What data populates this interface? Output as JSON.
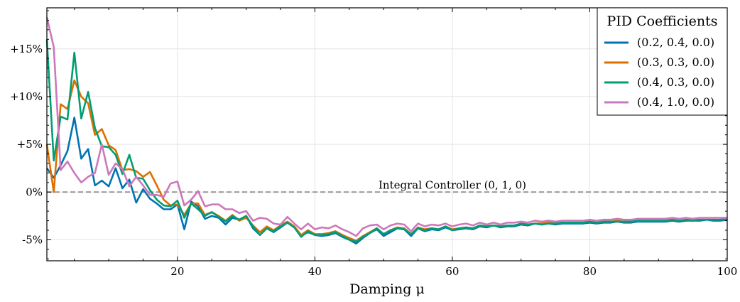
{
  "chart_data": {
    "type": "line",
    "title": "",
    "xlabel": "Damping μ",
    "ylabel": "",
    "xlim": [
      1,
      100
    ],
    "ylim": [
      -7.2,
      19.3
    ],
    "x_ticks": [
      20,
      40,
      60,
      80,
      100
    ],
    "y_ticks": [
      -5,
      0,
      5,
      10,
      15
    ],
    "y_tick_labels": [
      "-5%",
      "0%",
      "+5%",
      "+10%",
      "+15%"
    ],
    "grid": true,
    "legend": {
      "title": "PID Coefficients",
      "placement": "top-right"
    },
    "reference_line": {
      "y": 0,
      "label": "Integral Controller (0, 1, 0)",
      "style": "dashed",
      "color": "#888888"
    },
    "x": [
      1,
      2,
      3,
      4,
      5,
      6,
      7,
      8,
      9,
      10,
      11,
      12,
      13,
      14,
      15,
      16,
      17,
      18,
      19,
      20,
      21,
      22,
      23,
      24,
      25,
      26,
      27,
      28,
      29,
      30,
      31,
      32,
      33,
      34,
      35,
      36,
      37,
      38,
      39,
      40,
      41,
      42,
      43,
      44,
      45,
      46,
      47,
      48,
      49,
      50,
      51,
      52,
      53,
      54,
      55,
      56,
      57,
      58,
      59,
      60,
      61,
      62,
      63,
      64,
      65,
      66,
      67,
      68,
      69,
      70,
      71,
      72,
      73,
      74,
      75,
      76,
      77,
      78,
      79,
      80,
      81,
      82,
      83,
      84,
      85,
      86,
      87,
      88,
      89,
      90,
      91,
      92,
      93,
      94,
      95,
      96,
      97,
      98,
      99,
      100
    ],
    "series": [
      {
        "name": "(0.2, 0.4, 0.0)",
        "color": "#0173b2",
        "values": [
          2.5,
          1.5,
          2.8,
          4.3,
          7.8,
          3.5,
          4.5,
          0.7,
          1.2,
          0.6,
          2.5,
          0.4,
          1.3,
          -1.1,
          0.3,
          -0.7,
          -1.2,
          -1.8,
          -1.8,
          -1.3,
          -3.9,
          -1.0,
          -1.5,
          -2.8,
          -2.5,
          -2.7,
          -3.4,
          -2.7,
          -2.9,
          -2.5,
          -3.8,
          -4.5,
          -3.8,
          -4.2,
          -3.7,
          -3.2,
          -3.7,
          -4.6,
          -4.2,
          -4.5,
          -4.6,
          -4.5,
          -4.3,
          -4.7,
          -5.0,
          -5.4,
          -4.8,
          -4.3,
          -3.9,
          -4.6,
          -4.2,
          -3.8,
          -3.9,
          -4.6,
          -3.8,
          -4.1,
          -3.9,
          -4.0,
          -3.7,
          -4.0,
          -3.9,
          -3.8,
          -3.9,
          -3.6,
          -3.7,
          -3.5,
          -3.7,
          -3.6,
          -3.6,
          -3.4,
          -3.5,
          -3.3,
          -3.4,
          -3.3,
          -3.4,
          -3.3,
          -3.3,
          -3.3,
          -3.3,
          -3.2,
          -3.3,
          -3.2,
          -3.2,
          -3.1,
          -3.2,
          -3.2,
          -3.1,
          -3.1,
          -3.1,
          -3.1,
          -3.1,
          -3.0,
          -3.1,
          -3.0,
          -3.0,
          -3.0,
          -2.9,
          -3.0,
          -3.0,
          -2.9
        ]
      },
      {
        "name": "(0.3, 0.3, 0.0)",
        "color": "#de6f00",
        "values": [
          5.0,
          0.0,
          9.2,
          8.7,
          11.7,
          10.0,
          9.3,
          6.0,
          6.6,
          4.9,
          4.4,
          2.3,
          2.4,
          2.2,
          1.6,
          2.1,
          0.7,
          -0.8,
          -1.4,
          -1.3,
          -2.4,
          -1.2,
          -1.2,
          -2.4,
          -2.1,
          -2.5,
          -3.0,
          -2.4,
          -3.0,
          -2.7,
          -3.5,
          -4.2,
          -3.6,
          -4.0,
          -3.5,
          -3.1,
          -3.6,
          -4.5,
          -4.0,
          -4.4,
          -4.4,
          -4.3,
          -4.1,
          -4.5,
          -4.8,
          -5.1,
          -4.6,
          -4.2,
          -3.8,
          -4.4,
          -4.0,
          -3.7,
          -3.8,
          -4.4,
          -3.7,
          -3.9,
          -3.8,
          -3.9,
          -3.6,
          -3.9,
          -3.8,
          -3.7,
          -3.8,
          -3.5,
          -3.6,
          -3.5,
          -3.6,
          -3.5,
          -3.5,
          -3.3,
          -3.4,
          -3.3,
          -3.3,
          -3.2,
          -3.3,
          -3.2,
          -3.2,
          -3.2,
          -3.2,
          -3.1,
          -3.2,
          -3.1,
          -3.1,
          -3.0,
          -3.1,
          -3.1,
          -3.0,
          -3.0,
          -3.0,
          -3.0,
          -3.0,
          -2.9,
          -3.0,
          -2.9,
          -2.9,
          -2.9,
          -2.9,
          -2.9,
          -2.9,
          -2.8
        ]
      },
      {
        "name": "(0.4, 0.3, 0.0)",
        "color": "#029e73",
        "values": [
          16.0,
          3.3,
          7.9,
          7.6,
          14.6,
          7.7,
          10.5,
          6.7,
          4.8,
          4.7,
          3.9,
          1.9,
          3.9,
          1.5,
          1.4,
          0.2,
          -0.8,
          -1.4,
          -1.5,
          -0.9,
          -2.7,
          -1.2,
          -1.8,
          -2.5,
          -2.1,
          -2.6,
          -3.1,
          -2.5,
          -2.9,
          -2.5,
          -3.6,
          -4.5,
          -3.8,
          -4.1,
          -3.6,
          -3.2,
          -3.7,
          -4.7,
          -4.1,
          -4.5,
          -4.5,
          -4.4,
          -4.2,
          -4.6,
          -5.0,
          -5.2,
          -4.7,
          -4.3,
          -3.8,
          -4.4,
          -4.0,
          -3.8,
          -3.9,
          -4.4,
          -3.8,
          -4.0,
          -3.8,
          -3.9,
          -3.6,
          -4.0,
          -3.8,
          -3.7,
          -3.8,
          -3.5,
          -3.6,
          -3.5,
          -3.6,
          -3.5,
          -3.5,
          -3.3,
          -3.4,
          -3.3,
          -3.4,
          -3.3,
          -3.3,
          -3.2,
          -3.2,
          -3.2,
          -3.2,
          -3.1,
          -3.2,
          -3.1,
          -3.1,
          -3.1,
          -3.1,
          -3.1,
          -3.0,
          -3.0,
          -3.0,
          -3.0,
          -3.0,
          -2.9,
          -3.0,
          -2.9,
          -3.0,
          -2.9,
          -2.9,
          -2.9,
          -2.9,
          -2.8
        ]
      },
      {
        "name": "(0.4, 1.0, 0.0)",
        "color": "#cc78bc",
        "values": [
          18.3,
          15.2,
          2.3,
          3.2,
          2.0,
          1.0,
          1.6,
          2.0,
          5.0,
          1.8,
          3.0,
          2.4,
          0.6,
          1.6,
          0.7,
          -0.3,
          -0.3,
          -0.5,
          0.9,
          1.1,
          -1.4,
          -0.8,
          0.1,
          -1.5,
          -1.3,
          -1.3,
          -1.8,
          -1.8,
          -2.2,
          -2.0,
          -3.0,
          -2.7,
          -2.8,
          -3.3,
          -3.4,
          -2.6,
          -3.3,
          -3.9,
          -3.3,
          -3.9,
          -3.7,
          -3.8,
          -3.5,
          -3.9,
          -4.2,
          -4.6,
          -3.8,
          -3.5,
          -3.4,
          -3.9,
          -3.5,
          -3.3,
          -3.4,
          -4.1,
          -3.3,
          -3.6,
          -3.4,
          -3.5,
          -3.3,
          -3.6,
          -3.4,
          -3.3,
          -3.5,
          -3.2,
          -3.4,
          -3.2,
          -3.4,
          -3.2,
          -3.2,
          -3.1,
          -3.2,
          -3.0,
          -3.1,
          -3.0,
          -3.1,
          -3.0,
          -3.0,
          -3.0,
          -3.0,
          -2.9,
          -3.0,
          -2.9,
          -2.9,
          -2.8,
          -2.9,
          -2.9,
          -2.8,
          -2.8,
          -2.8,
          -2.8,
          -2.8,
          -2.7,
          -2.8,
          -2.7,
          -2.8,
          -2.7,
          -2.7,
          -2.7,
          -2.7,
          -2.7
        ]
      }
    ]
  }
}
